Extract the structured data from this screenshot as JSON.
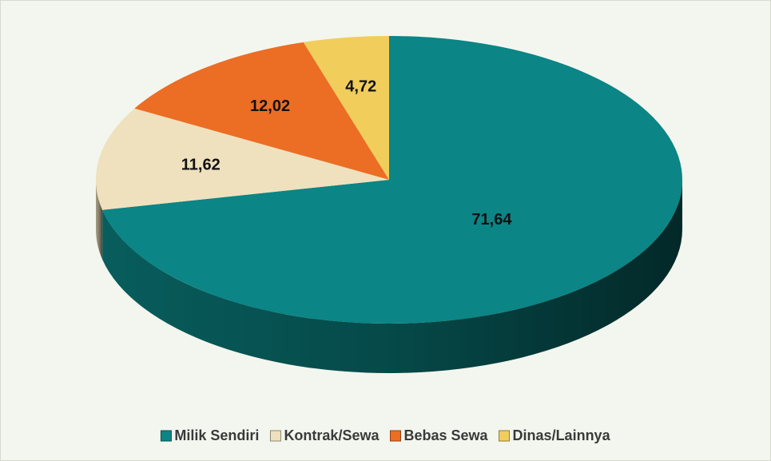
{
  "chart_data": {
    "type": "pie",
    "categories": [
      "Milik Sendiri",
      "Kontrak/Sewa",
      "Bebas Sewa",
      "Dinas/Lainnya"
    ],
    "values": [
      71.64,
      11.62,
      12.02,
      4.72
    ],
    "value_labels": [
      "71,64",
      "11,62",
      "12,02",
      "4,72"
    ],
    "colors": [
      "#0b8585",
      "#efe1bd",
      "#ec6d24",
      "#f1cd5c"
    ],
    "legend": "bottom"
  }
}
